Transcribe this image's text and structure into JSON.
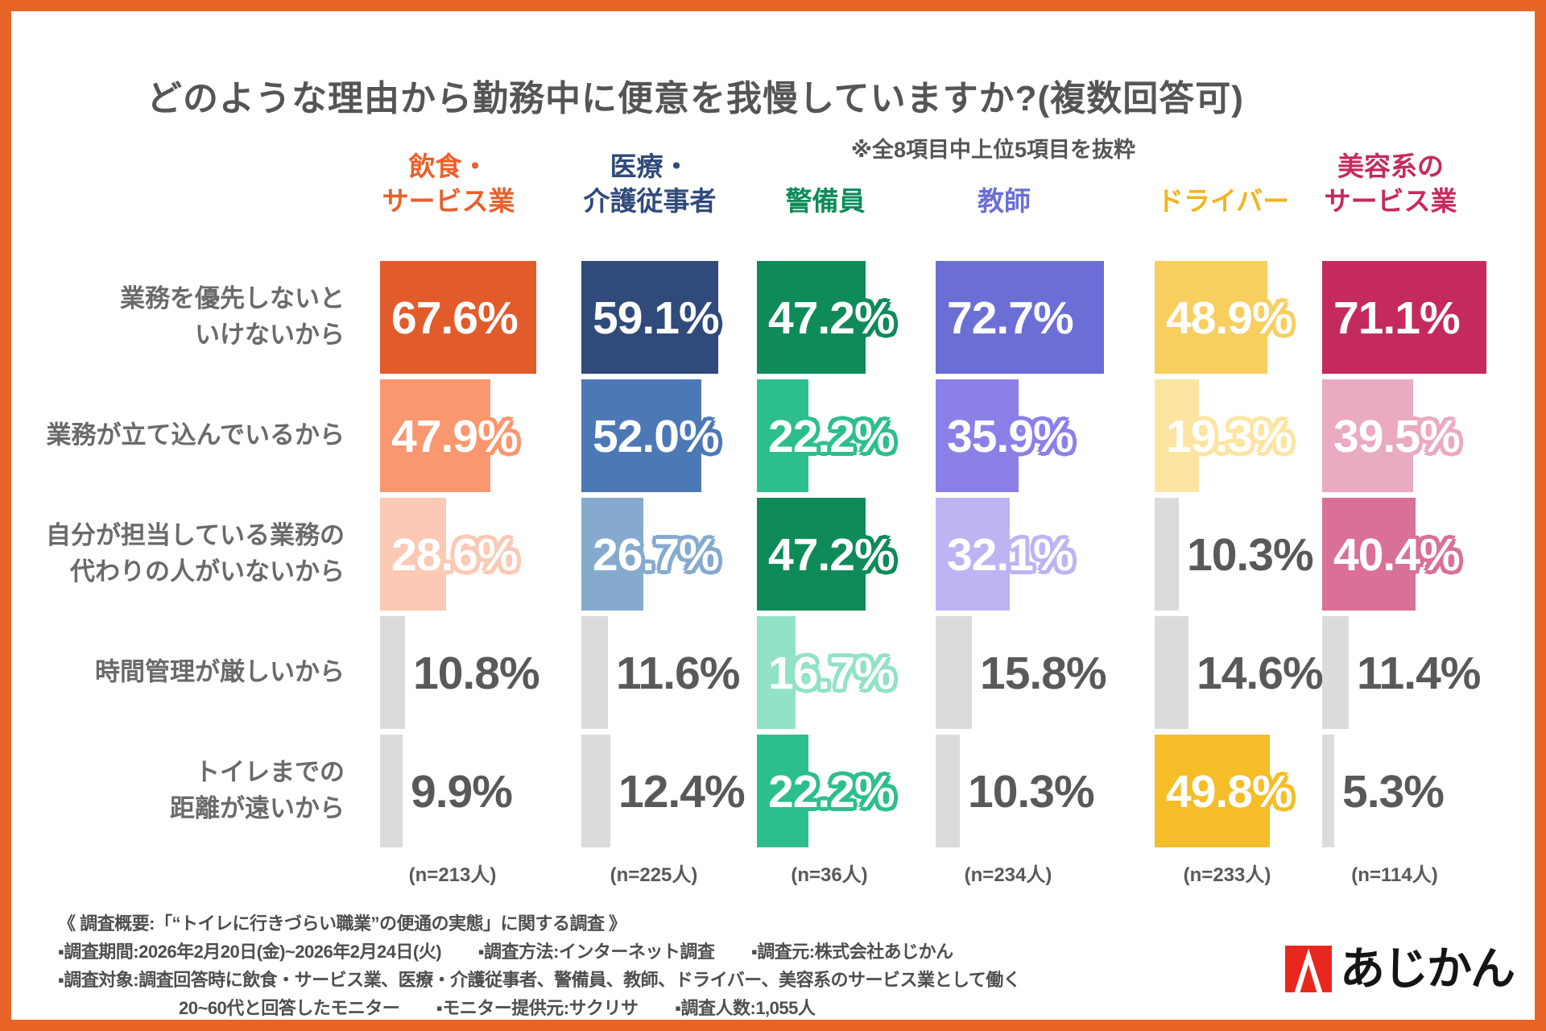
{
  "frame": {
    "border_color": "#E96427",
    "background": "#FFFFFF"
  },
  "title": "どのような理由から勤務中に便意を我慢していますか?(複数回答可)",
  "note": "※全8項目中上位5項目を抜粋",
  "chart_data": {
    "type": "bar",
    "orientation": "horizontal",
    "unit": "%",
    "xlim": [
      0,
      100
    ],
    "grid": false,
    "legend_position": "column-headers-top",
    "categories": [
      [
        "業務を優先しないと",
        "いけないから"
      ],
      [
        "業務が立て込んでいるから"
      ],
      [
        "自分が担当している業務の",
        "代わりの人がいないから"
      ],
      [
        "時間管理が厳しいから"
      ],
      [
        "トイレまでの",
        "距離が遠いから"
      ]
    ],
    "series": [
      {
        "name_lines": [
          "飲食・",
          "サービス業"
        ],
        "header_color": "#E8612C",
        "n_label": "(n=213人)",
        "values": [
          67.6,
          47.9,
          28.6,
          10.8,
          9.9
        ],
        "tiers": [
          "dark",
          "mid",
          "light",
          "gray",
          "gray"
        ],
        "colors": {
          "dark": "#E25C2B",
          "mid": "#F9976F",
          "light": "#FBC9B4"
        }
      },
      {
        "name_lines": [
          "医療・",
          "介護従事者"
        ],
        "header_color": "#2F4A7B",
        "n_label": "(n=225人)",
        "values": [
          59.1,
          52.0,
          26.7,
          11.6,
          12.4
        ],
        "tiers": [
          "dark",
          "mid",
          "light",
          "gray",
          "gray"
        ],
        "colors": {
          "dark": "#2F4A7B",
          "mid": "#4C79B6",
          "light": "#85AACE"
        }
      },
      {
        "name_lines": [
          "警備員"
        ],
        "header_color": "#0E8B59",
        "n_label": "(n=36人)",
        "values": [
          47.2,
          22.2,
          47.2,
          16.7,
          22.2
        ],
        "tiers": [
          "dark",
          "mid",
          "dark",
          "light",
          "mid"
        ],
        "colors": {
          "dark": "#0E8B59",
          "mid": "#2DBE8E",
          "light": "#92E2C5"
        }
      },
      {
        "name_lines": [
          "教師"
        ],
        "header_color": "#6B6ED5",
        "n_label": "(n=234人)",
        "values": [
          72.7,
          35.9,
          32.1,
          15.8,
          10.3
        ],
        "tiers": [
          "dark",
          "mid",
          "light",
          "gray",
          "gray"
        ],
        "colors": {
          "dark": "#6B6ED5",
          "mid": "#8A80E7",
          "light": "#BEB3F3"
        }
      },
      {
        "name_lines": [
          "ドライバー"
        ],
        "header_color": "#F0B41E",
        "n_label": "(n=233人)",
        "values": [
          48.9,
          19.3,
          10.3,
          14.6,
          49.8
        ],
        "tiers": [
          "mid",
          "light",
          "gray",
          "gray",
          "dark"
        ],
        "colors": {
          "dark": "#F5BD28",
          "mid": "#F8CE5E",
          "light": "#FBE5A1"
        }
      },
      {
        "name_lines": [
          "美容系の",
          "サービス業"
        ],
        "header_color": "#C52A5F",
        "n_label": "(n=114人)",
        "values": [
          71.1,
          39.5,
          40.4,
          11.4,
          5.3
        ],
        "tiers": [
          "dark",
          "light",
          "mid",
          "gray",
          "gray"
        ],
        "colors": {
          "dark": "#C52A5F",
          "mid": "#D97098",
          "light": "#EAAAC1"
        }
      }
    ],
    "gray_bar_color": "#DBDBDB",
    "gray_text_color": "#595959",
    "value_text_color": "#FFFFFF"
  },
  "footer": {
    "headline": "《 調査概要:「“トイレに行きづらい職業”の便通の実態」に関する調査 》",
    "rows": [
      {
        "segments": [
          "▪調査期間:2026年2月20日(金)~2026年2月24日(火)",
          "▪調査方法:インターネット調査",
          "▪調査元:株式会社あじかん"
        ]
      },
      {
        "segments": [
          "▪調査対象:調査回答時に飲食・サービス業、医療・介護従事者、警備員、教師、ドライバー、美容系のサービス業として働く"
        ]
      },
      {
        "segments": [
          "20~60代と回答したモニター",
          "▪モニター提供元:サクリサ",
          "▪調査人数:1,055人"
        ]
      }
    ]
  },
  "logo": {
    "text": "あじかん",
    "mark": "ajikan-a-mark",
    "mark_color": "#E8281E"
  }
}
